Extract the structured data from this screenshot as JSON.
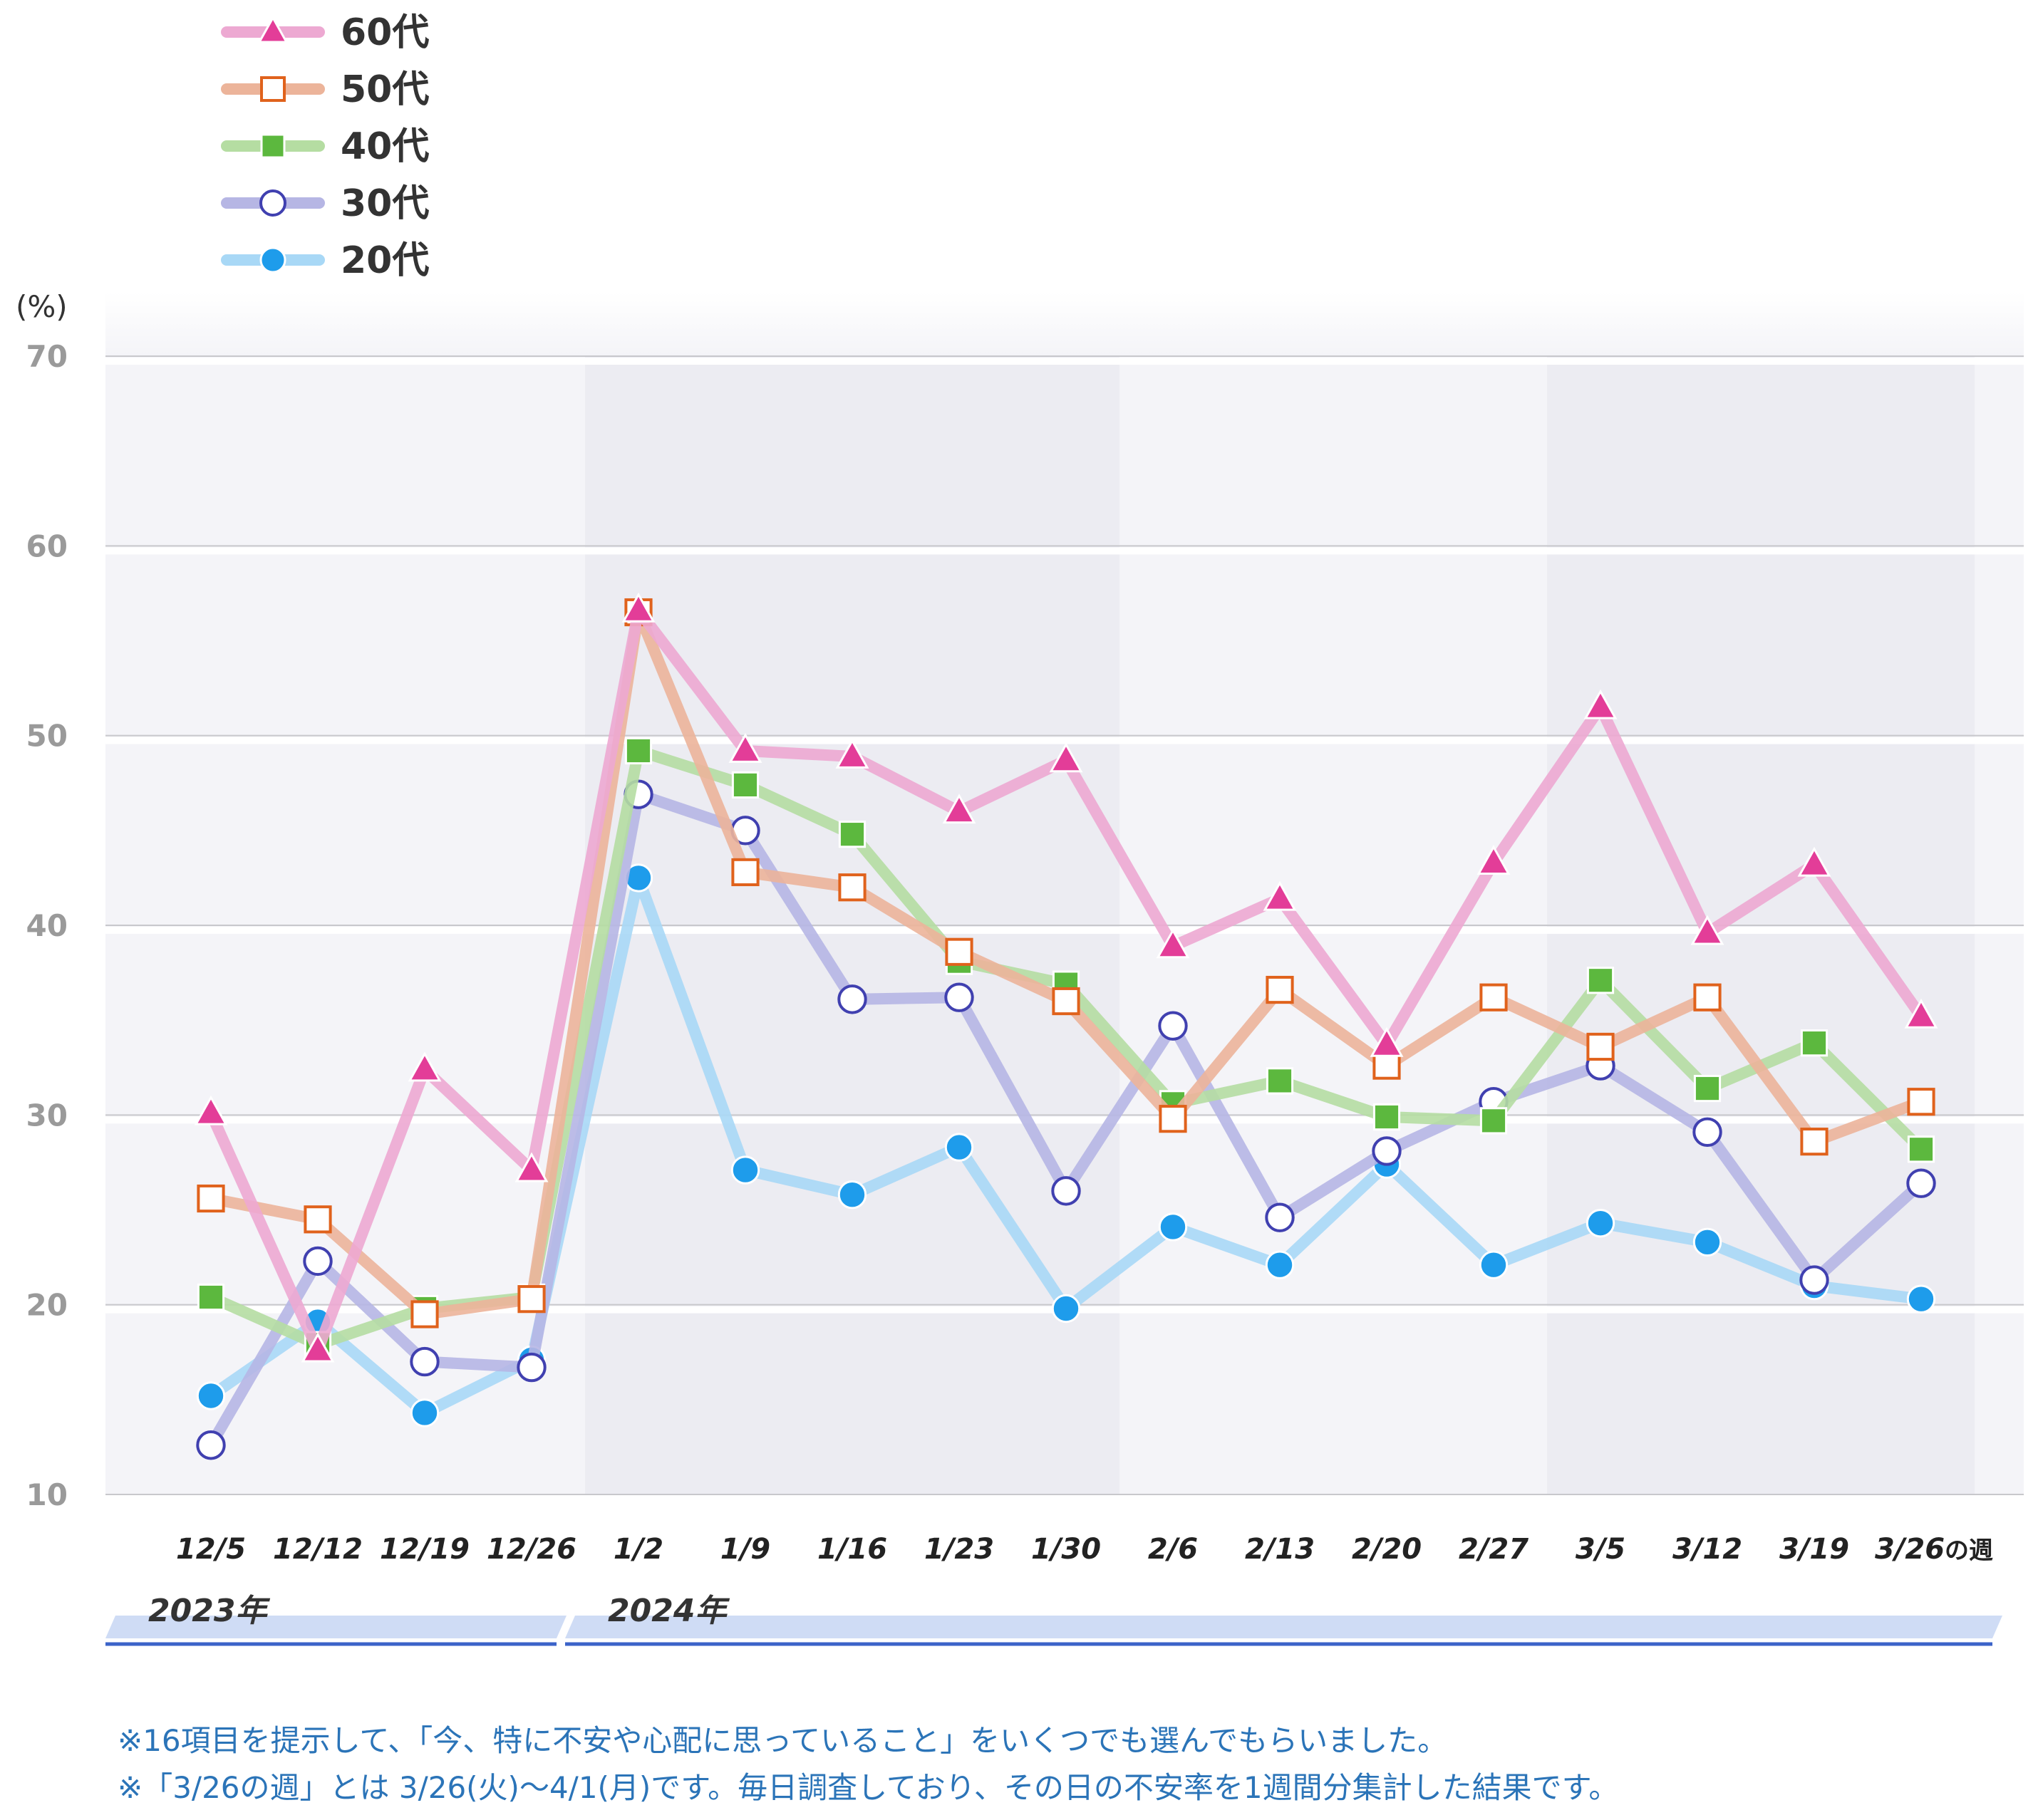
{
  "chart_data": {
    "type": "line",
    "unit": "(%)",
    "ylim": [
      10,
      70
    ],
    "yticks": [
      10,
      20,
      30,
      40,
      50,
      60,
      70
    ],
    "categories": [
      "12/5",
      "12/12",
      "12/19",
      "12/26",
      "1/2",
      "1/9",
      "1/16",
      "1/23",
      "1/30",
      "2/6",
      "2/13",
      "2/20",
      "2/27",
      "3/5",
      "3/12",
      "3/19",
      "3/26の週"
    ],
    "year_labels": [
      "2023年",
      "2024年"
    ],
    "grid": true,
    "legend_position": "top-left",
    "series": [
      {
        "name": "60代",
        "line_color": "#eda9d2",
        "marker": "triangle",
        "marker_color": "#e33d98",
        "values": [
          30.1,
          17.6,
          32.4,
          27.1,
          56.6,
          49.2,
          48.9,
          46.0,
          48.7,
          38.9,
          41.4,
          33.7,
          43.3,
          51.5,
          39.6,
          43.2,
          35.2
        ]
      },
      {
        "name": "50代",
        "line_color": "#ecb49a",
        "marker": "open-square",
        "marker_color": "#e0621c",
        "values": [
          25.6,
          24.5,
          19.5,
          20.3,
          56.5,
          42.8,
          42.0,
          38.6,
          36.0,
          29.8,
          36.6,
          32.6,
          36.2,
          33.6,
          36.2,
          28.6,
          30.7
        ]
      },
      {
        "name": "40代",
        "line_color": "#b5dda2",
        "marker": "square",
        "marker_color": "#5cb83e",
        "values": [
          20.4,
          17.9,
          19.8,
          20.4,
          49.2,
          47.4,
          44.8,
          38.1,
          36.9,
          30.6,
          31.8,
          29.9,
          29.7,
          37.1,
          31.4,
          33.8,
          28.2
        ]
      },
      {
        "name": "30代",
        "line_color": "#b6b6e4",
        "marker": "open-circle",
        "marker_color": "#4040b0",
        "values": [
          12.6,
          22.3,
          17.0,
          16.7,
          46.9,
          45.0,
          36.1,
          36.2,
          26.0,
          34.7,
          24.6,
          28.1,
          30.7,
          32.6,
          29.1,
          21.3,
          26.4
        ]
      },
      {
        "name": "20代",
        "line_color": "#a8d8f6",
        "marker": "circle",
        "marker_color": "#1e9ceb",
        "values": [
          15.2,
          19.1,
          14.3,
          17.1,
          42.5,
          27.1,
          25.8,
          28.3,
          19.8,
          24.1,
          22.1,
          27.4,
          22.1,
          24.3,
          23.3,
          21.0,
          20.3
        ]
      }
    ]
  },
  "notes": [
    "※16項目を提示して、「今、特に不安や心配に思っていること」をいくつでも選んでもらいました。",
    "※「3/26の週」とは 3/26(火)～4/1(月)です。毎日調査しており、その日の不安率を1週間分集計した結果です。"
  ]
}
